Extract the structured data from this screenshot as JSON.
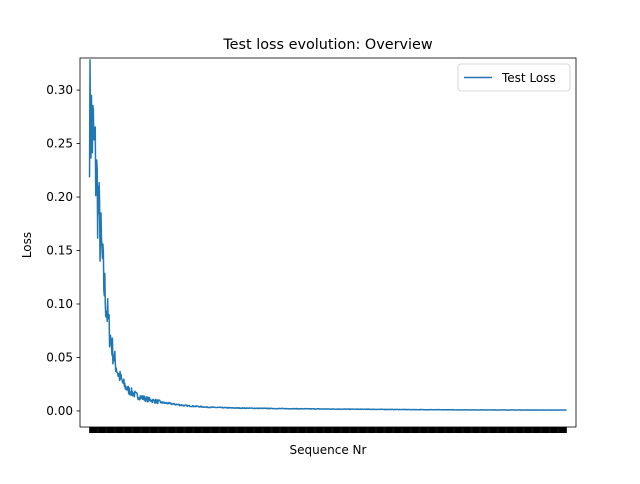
{
  "chart_data": {
    "type": "line",
    "title": "Test loss evolution: Overview",
    "xlabel": "Sequence Nr",
    "ylabel": "Loss",
    "ylim": [
      -0.015,
      0.33
    ],
    "yticks": [
      0.0,
      0.05,
      0.1,
      0.15,
      0.2,
      0.25,
      0.3
    ],
    "ytick_labels": [
      "0.00",
      "0.05",
      "0.10",
      "0.15",
      "0.20",
      "0.25",
      "0.30"
    ],
    "xlim": [
      -20,
      1020
    ],
    "x_ticks_count": 900,
    "grid": false,
    "legend": {
      "position": "top-right",
      "entries": [
        "Test Loss"
      ]
    },
    "series": [
      {
        "name": "Test Loss",
        "color": "#1f77b4",
        "x": [
          0,
          5,
          10,
          15,
          20,
          25,
          30,
          40,
          50,
          60,
          70,
          80,
          100,
          120,
          150,
          200,
          250,
          300,
          400,
          500,
          600,
          700,
          800,
          900,
          1000
        ],
        "values": [
          0.28,
          0.265,
          0.245,
          0.215,
          0.18,
          0.15,
          0.12,
          0.08,
          0.052,
          0.035,
          0.026,
          0.02,
          0.014,
          0.011,
          0.008,
          0.005,
          0.0035,
          0.0028,
          0.0022,
          0.0018,
          0.0015,
          0.0012,
          0.001,
          0.0009,
          0.0008
        ]
      }
    ]
  }
}
